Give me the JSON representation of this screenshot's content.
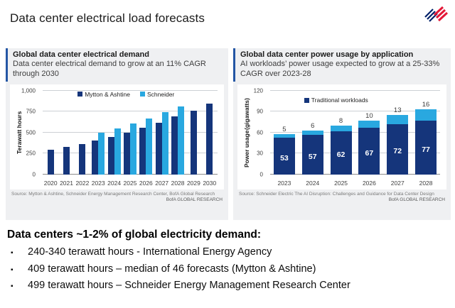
{
  "slide": {
    "title": "Data center electrical load forecasts"
  },
  "colors": {
    "navy": "#15357B",
    "light_blue": "#29A8E0",
    "accent_bar": "#2456A4",
    "logo_blue": "#012169",
    "logo_red": "#E31837"
  },
  "left_panel": {
    "header": {
      "title": "Global data center electrical demand",
      "subtitle": "Data center electrical demand to grow at an 11% CAGR through 2030"
    },
    "source": "Source:  Mytton & Ashtine,  Schneider  Energy  Management  Research  Center,  BofA  Global Research",
    "watermark": "BofA GLOBAL RESEARCH"
  },
  "right_panel": {
    "header": {
      "title": "Global data center power usage by application",
      "subtitle": "AI workloads’ power usage expected to grow at a 25-33% CAGR over 2023-28"
    },
    "source": "Source:  Schneider  Electric The AI Disruption:  Challenges and Guidance for Data Center  Design",
    "watermark": "BofA GLOBAL RESEARCH"
  },
  "chart_data": [
    {
      "type": "bar",
      "title": "Global data center electrical demand",
      "xlabel": "",
      "ylabel": "Terawatt hours",
      "ylim": [
        0,
        1000
      ],
      "yticks": [
        0,
        250,
        500,
        750,
        1000
      ],
      "ytick_labels": [
        "0",
        "250",
        "500",
        "750",
        "1,000"
      ],
      "grid": true,
      "legend": [
        "Mytton & Ashtine",
        "Schneider"
      ],
      "legend_position": "top-inside",
      "categories": [
        "2020",
        "2021",
        "2022",
        "2023",
        "2024",
        "2025",
        "2026",
        "2027",
        "2028",
        "2029",
        "2030"
      ],
      "series": [
        {
          "name": "Mytton & Ashtine",
          "color": "#15357B",
          "values": [
            295,
            330,
            365,
            409,
            450,
            500,
            555,
            620,
            690,
            760,
            845
          ]
        },
        {
          "name": "Schneider",
          "color": "#29A8E0",
          "values": [
            null,
            null,
            null,
            499,
            550,
            610,
            670,
            745,
            815,
            null,
            null
          ]
        }
      ]
    },
    {
      "type": "stacked-bar",
      "title": "Global data center power usage by application",
      "xlabel": "",
      "ylabel": "Power usage (gigawatts)",
      "ylabel_lines": [
        "Power usage",
        "(gigawatts)"
      ],
      "ylim": [
        0,
        120
      ],
      "yticks": [
        0,
        30,
        60,
        90,
        120
      ],
      "ytick_labels": [
        "0",
        "30",
        "60",
        "90",
        "120"
      ],
      "grid": true,
      "legend": [
        "Traditional workloads"
      ],
      "legend_position": "top-inside",
      "categories": [
        "2023",
        "2024",
        "2025",
        "2026",
        "2027",
        "2028"
      ],
      "series": [
        {
          "name": "Traditional workloads",
          "color": "#15357B",
          "value_labels": "inside",
          "values": [
            53,
            57,
            62,
            67,
            72,
            77
          ]
        },
        {
          "name": "AI workloads",
          "color": "#29A8E0",
          "value_labels": "above",
          "values": [
            5,
            6,
            8,
            10,
            13,
            16
          ]
        }
      ]
    }
  ],
  "bottom": {
    "heading": "Data centers ~1-2% of global electricity demand:",
    "bullet_char": "▪",
    "bullets": [
      "240-340 terawatt hours - International Energy Agency",
      "409 terawatt hours – median of 46 forecasts (Mytton & Ashtine)",
      "499 terawatt hours – Schneider Energy Management Research Center"
    ]
  }
}
